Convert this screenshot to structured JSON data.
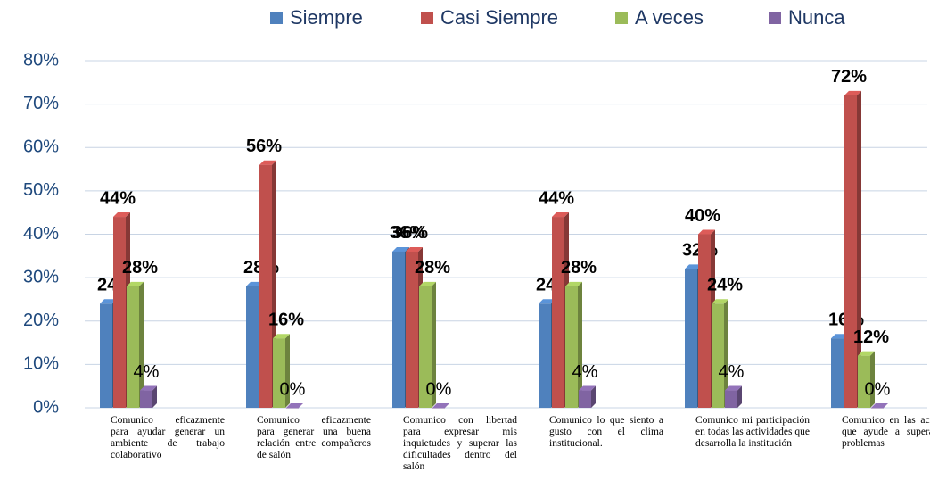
{
  "chart_data": {
    "type": "bar",
    "categories": [
      "Comunico eficazmente para ayudar generar un ambiente de trabajo colaborativo",
      "Comunico eficazmente para generar una buena relación entre compañeros de salón",
      "Comunico con libertad para expresar mis inquietudes y superar las dificultades dentro del salón",
      "Comunico lo que siento a gusto con el clima institucional.",
      "Comunico mi participación en todas las actividades que desarrolla la institución",
      "Comunico en las acciones que ayude a superar los problemas"
    ],
    "series": [
      {
        "name": "Siempre",
        "color": "#4f81bd",
        "values": [
          24,
          28,
          36,
          24,
          32,
          16
        ],
        "value_labels": [
          "24%",
          "28%",
          "36%",
          "24%",
          "32%",
          "16%"
        ]
      },
      {
        "name": "Casi Siempre",
        "color": "#c0504d",
        "values": [
          44,
          56,
          36,
          44,
          40,
          72
        ],
        "value_labels": [
          "44%",
          "56%",
          "36%",
          "44%",
          "40%",
          "72%"
        ]
      },
      {
        "name": "A veces",
        "color": "#9bbb59",
        "values": [
          28,
          16,
          28,
          28,
          24,
          12
        ],
        "value_labels": [
          "28%",
          "16%",
          "28%",
          "28%",
          "24%",
          "12%"
        ]
      },
      {
        "name": "Nunca",
        "color": "#8064a2",
        "values": [
          4,
          0,
          0,
          4,
          4,
          0
        ],
        "value_labels": [
          "4%",
          "0%",
          "0%",
          "4%",
          "4%",
          "0%"
        ]
      }
    ],
    "ylim": [
      0,
      80
    ],
    "yticks": [
      {
        "value": 0,
        "label": "0%"
      },
      {
        "value": 10,
        "label": "10%"
      },
      {
        "value": 20,
        "label": "20%"
      },
      {
        "value": 30,
        "label": "30%"
      },
      {
        "value": 40,
        "label": "40%"
      },
      {
        "value": 50,
        "label": "50%"
      },
      {
        "value": 60,
        "label": "60%"
      },
      {
        "value": 70,
        "label": "70%"
      },
      {
        "value": 80,
        "label": "80%"
      }
    ],
    "grid": true,
    "legend": "top"
  }
}
